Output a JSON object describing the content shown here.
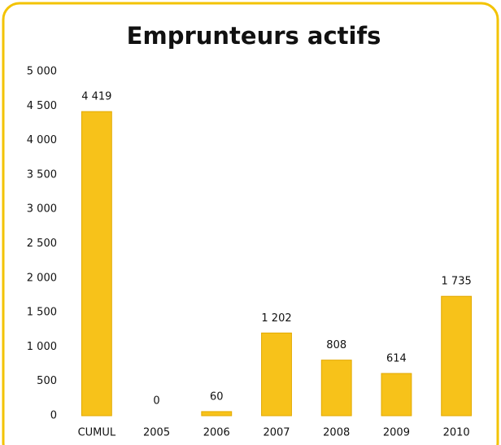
{
  "chart_data": {
    "type": "bar",
    "title": "Emprunteurs actifs",
    "categories": [
      "CUMUL",
      "2005",
      "2006",
      "2007",
      "2008",
      "2009",
      "2010"
    ],
    "values": [
      4419,
      0,
      60,
      1202,
      808,
      614,
      1735
    ],
    "value_labels": [
      "4 419",
      "0",
      "60",
      "1 202",
      "808",
      "614",
      "1 735"
    ],
    "color": "#f7c21a",
    "ylim": [
      0,
      5000
    ],
    "yticks": [
      0,
      500,
      {
        "value": 1000,
        "label": "1 000"
      },
      {
        "value": 1500,
        "label": "1 500"
      },
      {
        "value": 2000,
        "label": "2 000"
      },
      {
        "value": 2500,
        "label": "2 500"
      },
      {
        "value": 3000,
        "label": "3 000"
      },
      {
        "value": 3500,
        "label": "3 500"
      },
      {
        "value": 4000,
        "label": "4 000"
      },
      {
        "value": 4500,
        "label": "4 500"
      },
      {
        "value": 5000,
        "label": "5 000"
      }
    ],
    "grid": false
  }
}
